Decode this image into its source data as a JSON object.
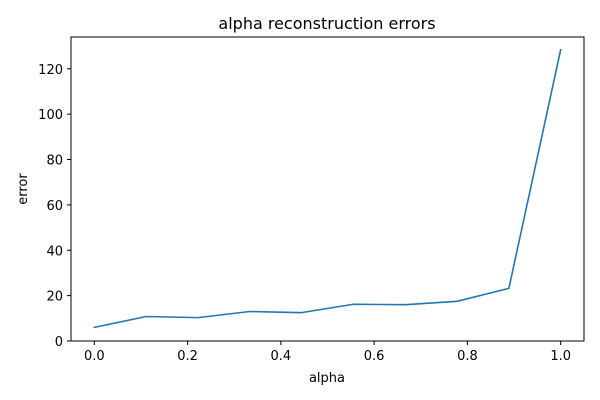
{
  "chart_data": {
    "type": "line",
    "title": "alpha reconstruction errors",
    "xlabel": "alpha",
    "ylabel": "error",
    "xlim": [
      -0.05,
      1.05
    ],
    "ylim": [
      0,
      134
    ],
    "xticks": [
      0.0,
      0.2,
      0.4,
      0.6,
      0.8,
      1.0
    ],
    "xtick_labels": [
      "0.0",
      "0.2",
      "0.4",
      "0.6",
      "0.8",
      "1.0"
    ],
    "yticks": [
      0,
      20,
      40,
      60,
      80,
      100,
      120
    ],
    "ytick_labels": [
      "0",
      "20",
      "40",
      "60",
      "80",
      "100",
      "120"
    ],
    "grid": false,
    "series": [
      {
        "color": "#1f77b4",
        "x": [
          0.0,
          0.1111,
          0.2222,
          0.3333,
          0.4444,
          0.5556,
          0.6667,
          0.7778,
          0.8889,
          1.0
        ],
        "y": [
          6.0,
          10.8,
          10.3,
          13.0,
          12.5,
          16.2,
          16.0,
          17.5,
          23.2,
          128.4
        ]
      }
    ]
  }
}
